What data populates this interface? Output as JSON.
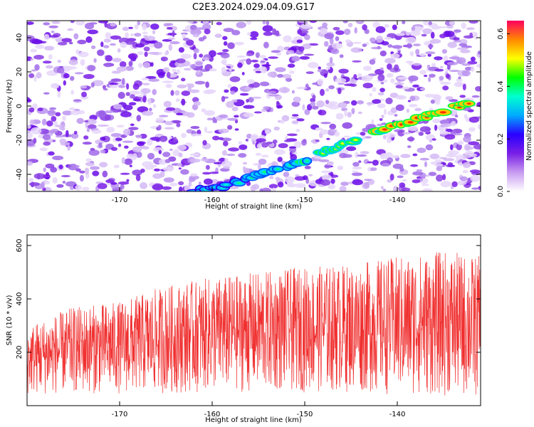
{
  "title": "C2E3.2024.029.04.09.G17",
  "chart_data": [
    {
      "type": "heatmap",
      "xlabel": "Height of straight line (km)",
      "ylabel": "Frequency (Hz)",
      "xlim": [
        -180,
        -131
      ],
      "ylim": [
        -50,
        50
      ],
      "xticks": [
        -170,
        -160,
        -150,
        -140
      ],
      "yticks": [
        -40,
        -20,
        0,
        20,
        40
      ],
      "colorbar": {
        "label": "Normalized spectral amplitude",
        "range": [
          0,
          0.65
        ],
        "ticks": [
          0.0,
          0.2,
          0.4,
          0.6
        ],
        "colors": [
          "#ffffff",
          "#c89cf0",
          "#7a1fe6",
          "#2a00ff",
          "#00aaff",
          "#00ffd0",
          "#00ff00",
          "#ffff00",
          "#ff8800",
          "#ff0060"
        ]
      },
      "ridge": {
        "x": [
          -162,
          -158,
          -154,
          -150,
          -147,
          -144,
          -141,
          -138,
          -135,
          -132
        ],
        "y": [
          -50,
          -46,
          -38,
          -32,
          -25,
          -19,
          -13,
          -8,
          -3,
          2
        ]
      }
    },
    {
      "type": "line",
      "xlabel": "Height of straight line (km)",
      "ylabel": "SNR (10 * v/v)",
      "xlim": [
        -180,
        -131
      ],
      "ylim": [
        0,
        640
      ],
      "xticks": [
        -170,
        -160,
        -150,
        -140
      ],
      "yticks": [
        200,
        400,
        600
      ],
      "color": "#f03030",
      "envelope": {
        "x": [
          -180,
          -175,
          -170,
          -165,
          -160,
          -155,
          -150,
          -145,
          -140,
          -135,
          -131
        ],
        "low": [
          40,
          45,
          45,
          45,
          50,
          50,
          50,
          50,
          40,
          35,
          30
        ],
        "high": [
          300,
          370,
          390,
          450,
          480,
          500,
          520,
          530,
          560,
          580,
          560
        ]
      }
    }
  ]
}
